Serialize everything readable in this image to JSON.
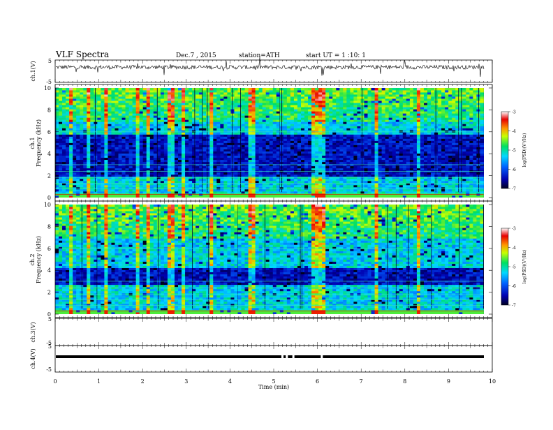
{
  "header": {
    "title": "VLF  Spectra",
    "date": "Dec.7  , 2015",
    "station": "station=ATH",
    "start": "start  UT  =   1  :10: 1"
  },
  "chart_data": [
    {
      "type": "line",
      "name": "ch1-waveform",
      "ylabel": "ch.1(V)",
      "ylim": [
        -5,
        5
      ],
      "yticks": [
        "5",
        "-5"
      ],
      "xlim": [
        0,
        10
      ],
      "baseline_v": 1.8,
      "noise_v": 0.3
    },
    {
      "type": "heatmap",
      "name": "ch1-spectrogram",
      "ylabel_line1": "ch.1",
      "ylabel_line2": "Frequency  (kHz)",
      "ylim_khz": [
        0,
        10
      ],
      "yticks": [
        "0",
        "2",
        "4",
        "6",
        "8",
        "10"
      ],
      "xlim_min": [
        0,
        9.8
      ],
      "colorbar": {
        "label": "log(PSD)(V²/Hz)",
        "range": [
          -7,
          -3
        ],
        "ticks": [
          "-3",
          "-4",
          "-5",
          "-6",
          "-7"
        ]
      },
      "dark_band_khz": [
        2,
        5.8
      ],
      "bright_burst_times_min": [
        0.35,
        0.75,
        1.15,
        1.9,
        2.15,
        2.65,
        2.95,
        3.55,
        4.5,
        5.95,
        6.1,
        7.35,
        8.3
      ]
    },
    {
      "type": "heatmap",
      "name": "ch2-spectrogram",
      "ylabel_line1": "ch.2",
      "ylabel_line2": "Frequency  (kHz)",
      "ylim_khz": [
        0,
        10
      ],
      "yticks": [
        "0",
        "2",
        "4",
        "6",
        "8",
        "10"
      ],
      "xlim_min": [
        0,
        9.8
      ],
      "colorbar": {
        "label": "log(PSD)(V²/Hz)",
        "range": [
          -7,
          -3
        ],
        "ticks": [
          "-3",
          "-4",
          "-5",
          "-6",
          "-7"
        ]
      },
      "dark_band_khz": [
        2.6,
        4.2
      ],
      "bright_burst_times_min": [
        0.35,
        0.75,
        1.15,
        1.9,
        2.15,
        2.65,
        2.95,
        3.55,
        4.5,
        5.95,
        6.1,
        7.35,
        8.3
      ]
    },
    {
      "type": "line",
      "name": "ch3-waveform",
      "ylabel": "ch.3(V)",
      "ylim": [
        -5,
        5
      ],
      "yticks": [
        "5",
        "-5"
      ],
      "xlim": [
        0,
        10
      ]
    },
    {
      "type": "line",
      "name": "ch4-waveform",
      "ylabel": "ch.4(V)",
      "ylim": [
        -5,
        5
      ],
      "yticks": [
        "5",
        "-5"
      ],
      "xlim": [
        0,
        10
      ],
      "level_v": 0,
      "gaps_min": [
        5.2,
        5.3,
        5.45,
        6.1
      ]
    }
  ],
  "xaxis": {
    "label": "Time  (min)",
    "ticks": [
      "0",
      "1",
      "2",
      "3",
      "4",
      "5",
      "6",
      "7",
      "8",
      "9",
      "10"
    ],
    "range": [
      0,
      10
    ]
  }
}
